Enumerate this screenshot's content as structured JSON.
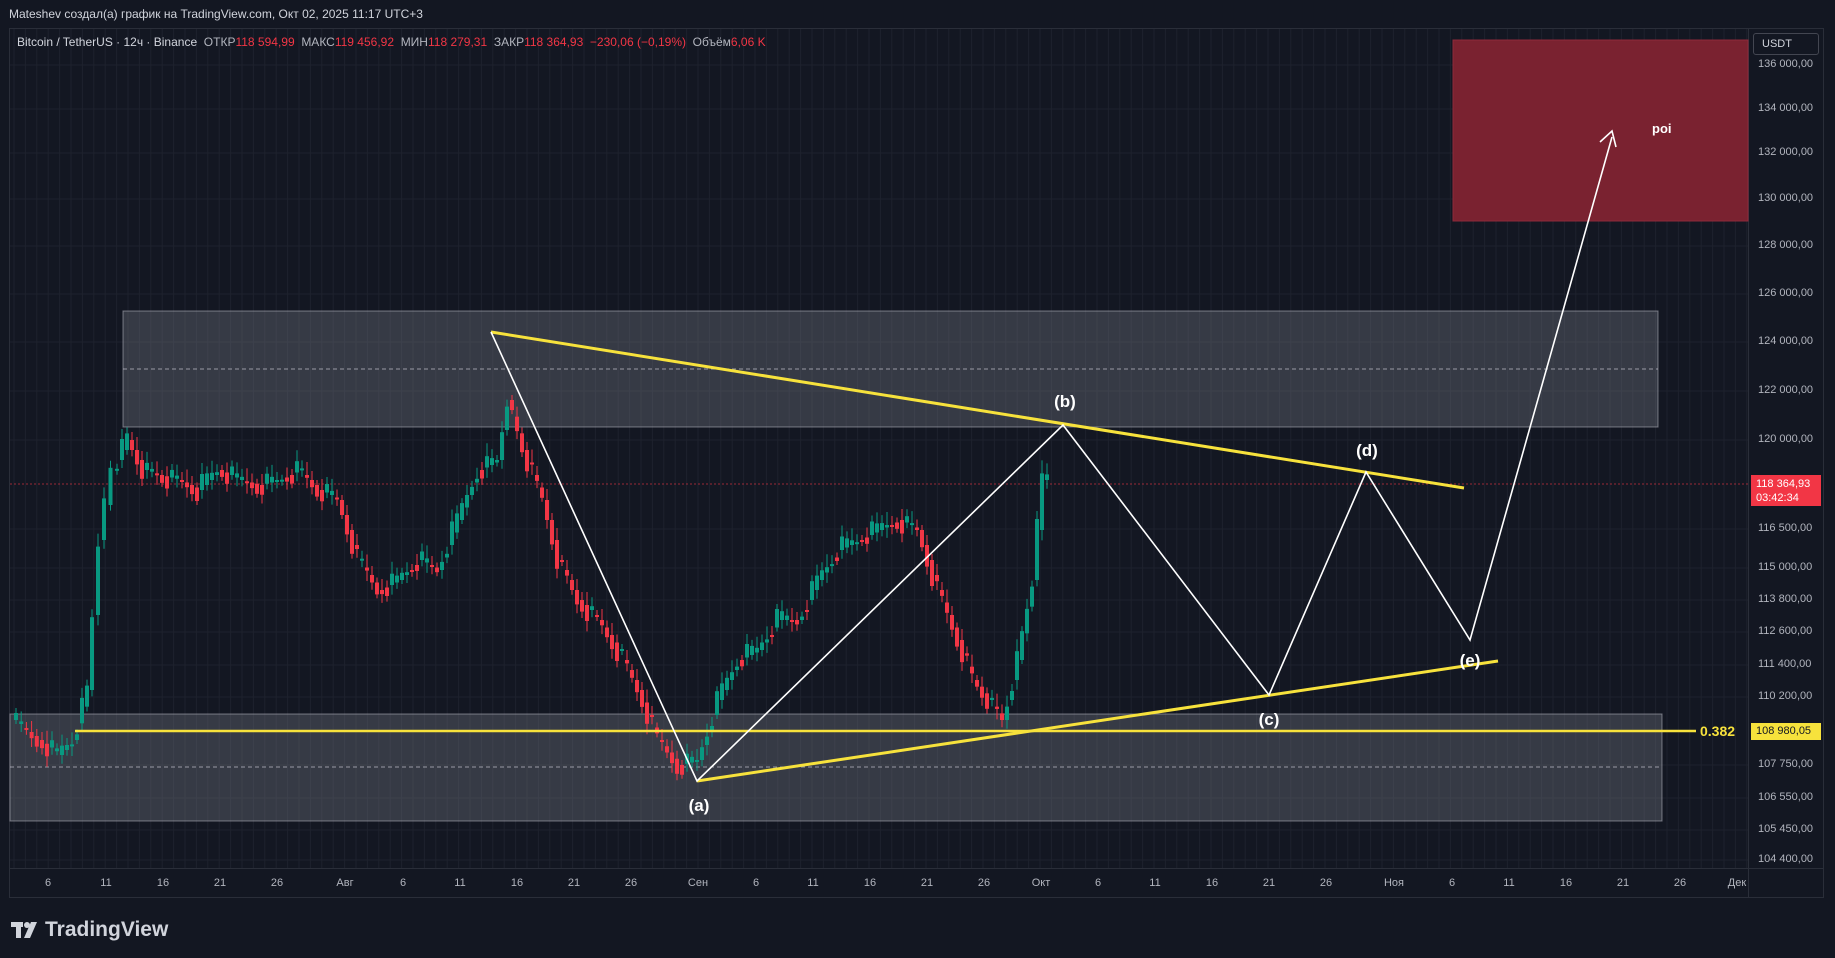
{
  "header": {
    "author_line": "Mateshev создал(а) график на TradingView.com, Окт 02, 2025 11:17 UTC+3"
  },
  "legend": {
    "symbol": "Bitcoin / TetherUS · 12ч · Binance",
    "open_label": "ОТКР",
    "open": "118 594,99",
    "high_label": "МАКС",
    "high": "119 456,92",
    "low_label": "МИН",
    "low": "118 279,31",
    "close_label": "ЗАКР",
    "close": "118 364,93",
    "change": "−230,06 (−0,19%)",
    "volume_label": "Объём",
    "volume": "6,06 K"
  },
  "price_axis": {
    "currency_button": "USDT",
    "labels": [
      "136 000,00",
      "134 000,00",
      "132 000,00",
      "130 000,00",
      "128 000,00",
      "126 000,00",
      "124 000,00",
      "122 000,00",
      "120 000,00",
      "116 500,00",
      "115 000,00",
      "113 800,00",
      "112 600,00",
      "111 400,00",
      "110 200,00",
      "107 750,00",
      "106 550,00",
      "105 450,00",
      "104 400,00"
    ],
    "current_price": "118 364,93",
    "countdown": "03:42:34",
    "fib_price": "108 980,05"
  },
  "time_axis": {
    "labels": [
      "6",
      "11",
      "16",
      "21",
      "26",
      "Авг",
      "6",
      "11",
      "16",
      "21",
      "26",
      "Сен",
      "6",
      "11",
      "16",
      "21",
      "26",
      "Окт",
      "6",
      "11",
      "16",
      "21",
      "26",
      "Ноя",
      "6",
      "11",
      "16",
      "21",
      "26",
      "Дек"
    ]
  },
  "annotations": {
    "fib_level": "0.382",
    "wave_a": "(a)",
    "wave_b": "(b)",
    "wave_c": "(c)",
    "wave_d": "(d)",
    "wave_e": "(e)",
    "poi": "poi"
  },
  "branding": {
    "logo_text": "TradingView"
  },
  "colors": {
    "background": "#131722",
    "up": "#089981",
    "down": "#f23645",
    "trendline": "#f7e23c",
    "poi_zone": "#7a2230",
    "wave": "#ffffff"
  }
}
